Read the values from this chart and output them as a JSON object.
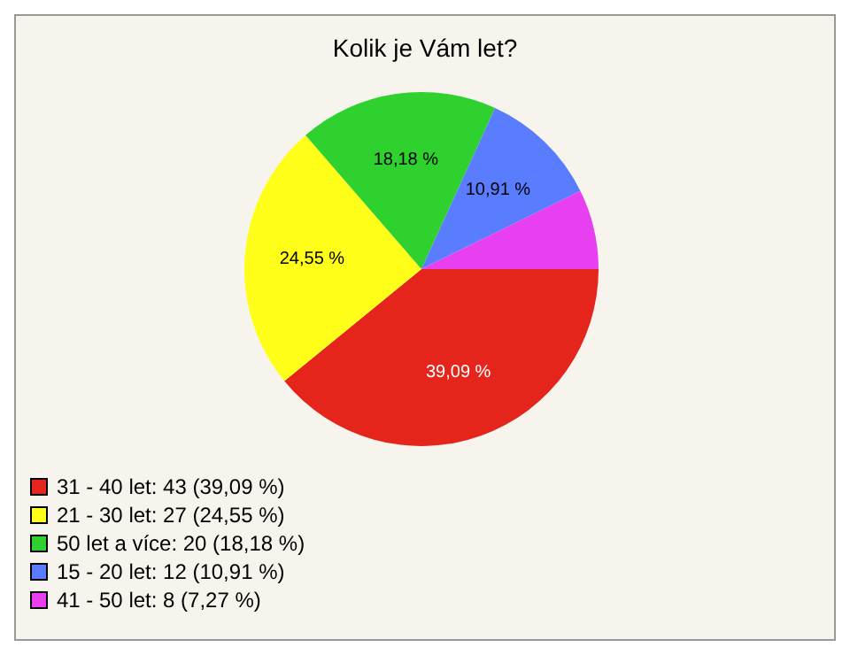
{
  "chart_data": {
    "type": "pie",
    "title": "Kolik je Vám let?",
    "categories": [
      "31 - 40 let: 43 (39,09 %)",
      "21 - 30 let: 27 (24,55 %)",
      "50 let a více: 20 (18,18 %)",
      "15 - 20 let: 12 (10,91 %)",
      "41 - 50 let: 8 (7,27 %)"
    ],
    "values": [
      39.09,
      24.55,
      18.18,
      10.91,
      7.27
    ],
    "colors": [
      "#e5241b",
      "#ffff1a",
      "#2ed12e",
      "#5a7dff",
      "#e83ff0"
    ],
    "value_labels": [
      "39,09 %",
      "24,55 %",
      "18,18 %",
      "10,91 %",
      null
    ],
    "legend": "bottom left"
  }
}
